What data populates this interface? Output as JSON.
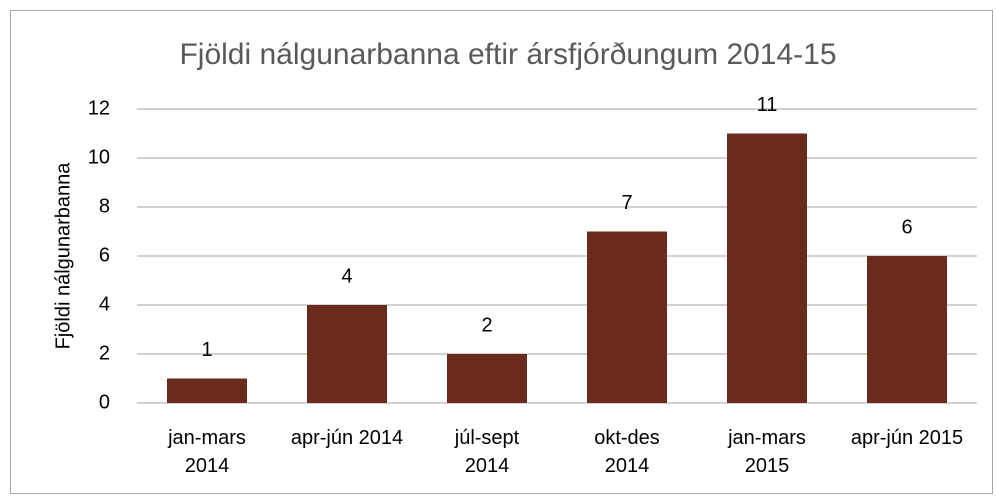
{
  "chart_data": {
    "type": "bar",
    "title": "Fjöldi nálgunarbanna eftir ársfjórðungum 2014-15",
    "y_label": "Fjöldi nálgunarbanna",
    "categories": [
      "jan-mars\n2014",
      "apr-jún 2014",
      "júl-sept\n2014",
      "okt-des\n2014",
      "jan-mars\n2015",
      "apr-jún 2015"
    ],
    "values": [
      1,
      4,
      2,
      7,
      11,
      6
    ],
    "color": "#6b2a1e",
    "ylim": [
      0,
      12
    ],
    "yticks": [
      0,
      2,
      4,
      6,
      8,
      10,
      12
    ],
    "grid": true
  }
}
